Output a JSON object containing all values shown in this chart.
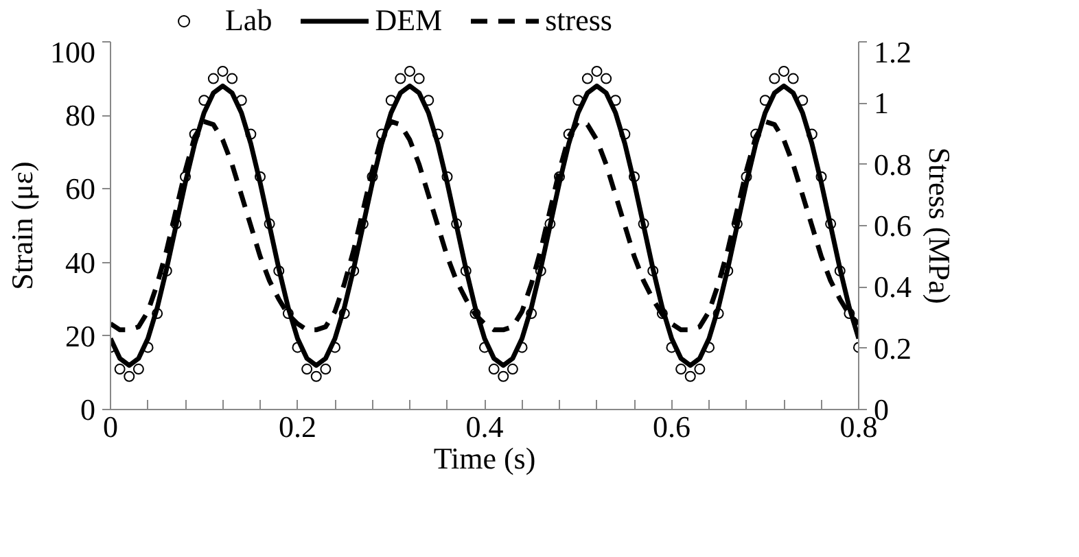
{
  "chart_data": {
    "type": "line",
    "xlabel": "Time (s)",
    "ylabel": "Strain (με)",
    "y2label": "Stress (MPa)",
    "x": [
      0,
      0.01,
      0.02,
      0.03,
      0.04,
      0.05,
      0.06,
      0.07,
      0.08,
      0.09,
      0.1,
      0.11,
      0.12,
      0.13,
      0.14,
      0.15,
      0.16,
      0.17,
      0.18,
      0.19,
      0.2,
      0.21,
      0.22,
      0.23,
      0.24,
      0.25,
      0.26,
      0.27,
      0.28,
      0.29,
      0.3,
      0.31,
      0.32,
      0.33,
      0.34,
      0.35,
      0.36,
      0.37,
      0.38,
      0.39,
      0.4,
      0.41,
      0.42,
      0.43,
      0.44,
      0.45,
      0.46,
      0.47,
      0.48,
      0.49,
      0.5,
      0.51,
      0.52,
      0.53,
      0.54,
      0.55,
      0.56,
      0.57,
      0.58,
      0.59,
      0.6,
      0.61,
      0.62,
      0.63,
      0.64,
      0.65,
      0.66,
      0.67,
      0.68,
      0.69,
      0.7,
      0.71,
      0.72,
      0.73,
      0.74,
      0.75,
      0.76,
      0.77,
      0.78,
      0.79,
      0.8
    ],
    "series": [
      {
        "name": "Lab",
        "type": "scatter",
        "marker": "circle",
        "color": "#000000",
        "values": [
          16.9,
          11.0,
          9.0,
          11.0,
          16.9,
          26.1,
          37.7,
          50.5,
          63.3,
          74.9,
          84.1,
          90.0,
          92.0,
          90.0,
          84.1,
          74.9,
          63.3,
          50.5,
          37.7,
          26.1,
          16.9,
          11.0,
          9.0,
          11.0,
          16.9,
          26.1,
          37.7,
          50.5,
          63.3,
          74.9,
          84.1,
          90.0,
          92.0,
          90.0,
          84.1,
          74.9,
          63.3,
          50.5,
          37.7,
          26.1,
          16.9,
          11.0,
          9.0,
          11.0,
          16.9,
          26.1,
          37.7,
          50.5,
          63.3,
          74.9,
          84.1,
          90.0,
          92.0,
          90.0,
          84.1,
          74.9,
          63.3,
          50.5,
          37.7,
          26.1,
          16.9,
          11.0,
          9.0,
          11.0,
          16.9,
          26.1,
          37.7,
          50.5,
          63.3,
          74.9,
          84.1,
          90.0,
          92.0,
          90.0,
          84.1,
          74.9,
          63.3,
          50.5,
          37.7,
          26.1,
          16.9
        ]
      },
      {
        "name": "DEM",
        "type": "line",
        "line_style": "solid",
        "color": "#000000",
        "values": [
          19.3,
          13.9,
          12,
          13.9,
          19.3,
          27.7,
          38.3,
          50,
          61.7,
          72.3,
          80.7,
          86.1,
          88,
          86.1,
          80.7,
          72.3,
          61.7,
          50,
          38.3,
          27.7,
          19.3,
          13.9,
          12,
          13.9,
          19.3,
          27.7,
          38.3,
          50,
          61.7,
          72.3,
          80.7,
          86.1,
          88,
          86.1,
          80.7,
          72.3,
          61.7,
          50,
          38.3,
          27.7,
          19.3,
          13.9,
          12,
          13.9,
          19.3,
          27.7,
          38.3,
          50,
          61.7,
          72.3,
          80.7,
          86.1,
          88,
          86.1,
          80.7,
          72.3,
          61.7,
          50,
          38.3,
          27.7,
          19.3,
          13.9,
          12,
          13.9,
          19.3,
          27.7,
          38.3,
          50,
          61.7,
          72.3,
          80.7,
          86.1,
          88,
          86.1,
          80.7,
          72.3,
          61.7,
          50,
          38.3,
          27.7,
          19.3
        ]
      },
      {
        "name": "stress",
        "type": "line",
        "line_style": "dashed",
        "axis": "y2",
        "color": "#000000",
        "values": [
          0.28,
          0.26,
          0.26,
          0.27,
          0.32,
          0.41,
          0.52,
          0.65,
          0.78,
          0.89,
          0.94,
          0.93,
          0.88,
          0.8,
          0.7,
          0.6,
          0.5,
          0.42,
          0.36,
          0.31,
          0.28,
          0.26,
          0.26,
          0.27,
          0.32,
          0.41,
          0.52,
          0.65,
          0.78,
          0.89,
          0.94,
          0.93,
          0.88,
          0.8,
          0.7,
          0.6,
          0.5,
          0.42,
          0.36,
          0.31,
          0.28,
          0.26,
          0.26,
          0.27,
          0.32,
          0.41,
          0.52,
          0.65,
          0.78,
          0.89,
          0.94,
          0.93,
          0.88,
          0.8,
          0.7,
          0.6,
          0.5,
          0.42,
          0.36,
          0.31,
          0.28,
          0.26,
          0.26,
          0.27,
          0.32,
          0.41,
          0.52,
          0.65,
          0.78,
          0.89,
          0.94,
          0.93,
          0.88,
          0.8,
          0.7,
          0.6,
          0.5,
          0.42,
          0.36,
          0.31,
          0.28
        ]
      }
    ],
    "xlim": [
      0,
      0.8
    ],
    "ylim": [
      0,
      100
    ],
    "y2lim": [
      0,
      1.2
    ],
    "xticks": [
      0,
      {
        "value": 0.04,
        "label": null
      },
      {
        "value": 0.08,
        "label": null
      },
      {
        "value": 0.12,
        "label": null
      },
      {
        "value": 0.16,
        "label": null
      },
      0.2,
      {
        "value": 0.24,
        "label": null
      },
      {
        "value": 0.28,
        "label": null
      },
      {
        "value": 0.32,
        "label": null
      },
      {
        "value": 0.36,
        "label": null
      },
      0.4,
      {
        "value": 0.44,
        "label": null
      },
      {
        "value": 0.48,
        "label": null
      },
      {
        "value": 0.52,
        "label": null
      },
      {
        "value": 0.56,
        "label": null
      },
      0.6,
      {
        "value": 0.64,
        "label": null
      },
      {
        "value": 0.68,
        "label": null
      },
      {
        "value": 0.72,
        "label": null
      },
      {
        "value": 0.76,
        "label": null
      },
      0.8
    ],
    "yticks": [
      0,
      20,
      40,
      60,
      80,
      100
    ],
    "y2ticks": [
      0,
      0.2,
      0.4,
      0.6,
      0.8,
      1,
      1.2
    ],
    "grid": false,
    "legend": "top"
  }
}
